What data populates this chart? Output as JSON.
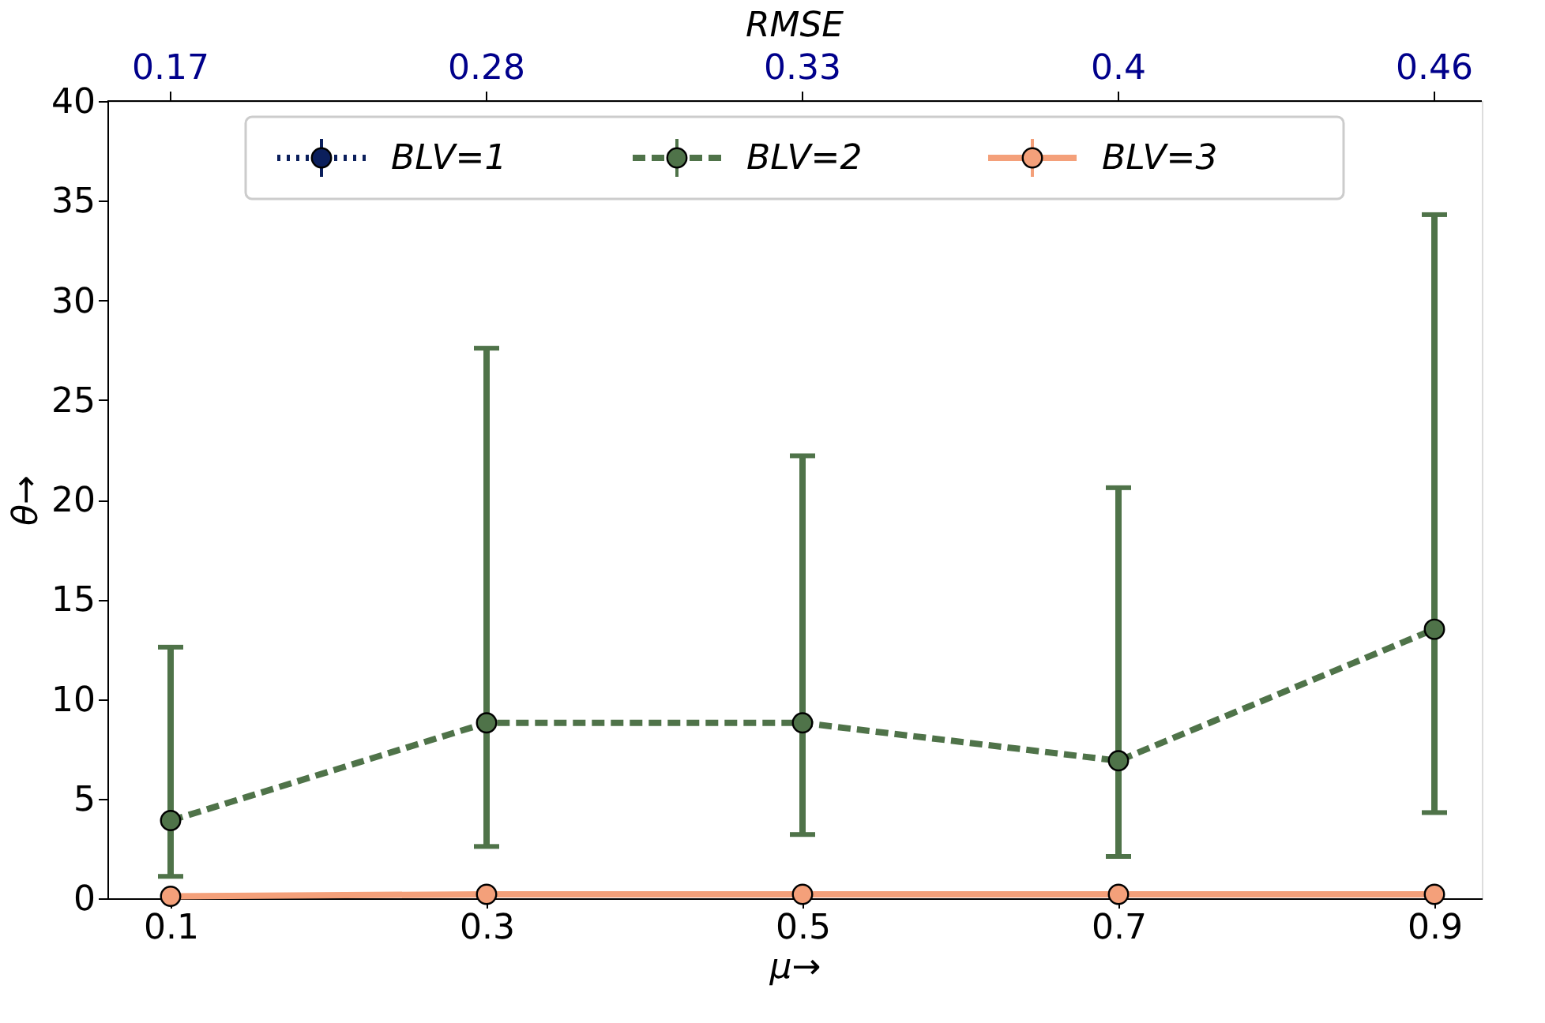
{
  "chart_data": {
    "type": "line",
    "xlabel": "μ→",
    "ylabel": "θ→",
    "x2label": "RMSE",
    "x": [
      0.1,
      0.3,
      0.5,
      0.7,
      0.9
    ],
    "xlim": [
      0.06,
      0.93
    ],
    "xticks": [
      0.1,
      0.3,
      0.5,
      0.7,
      0.9
    ],
    "annotations": [
      {
        "text": "0.17",
        "x": 0.1
      },
      {
        "text": "0.28",
        "x": 0.3
      },
      {
        "text": "0.33",
        "x": 0.5
      },
      {
        "text": "0.4",
        "x": 0.7
      },
      {
        "text": "0.46",
        "x": 0.9
      }
    ],
    "ylim": [
      0,
      40
    ],
    "yticks": [
      0,
      5,
      10,
      15,
      20,
      25,
      30,
      35,
      40
    ],
    "grid": false,
    "legend": "top",
    "marker": "circle",
    "series": [
      {
        "name": "BLV=1",
        "color": "#0b1f5c",
        "line_style": "dotted",
        "values": [
          null,
          null,
          null,
          null,
          null
        ]
      },
      {
        "name": "BLV=2",
        "color": "#4f7349",
        "line_style": "dashed",
        "values": [
          3.9,
          8.8,
          8.8,
          6.9,
          13.5
        ],
        "errors": [
          [
            1.1,
            12.6
          ],
          [
            2.6,
            27.6
          ],
          [
            3.2,
            22.2
          ],
          [
            2.1,
            20.6
          ],
          [
            4.3,
            34.3
          ]
        ]
      },
      {
        "name": "BLV=3",
        "color": "#f4a07a",
        "line_style": "solid",
        "values": [
          0.1,
          0.2,
          0.2,
          0.2,
          0.2
        ]
      }
    ]
  }
}
